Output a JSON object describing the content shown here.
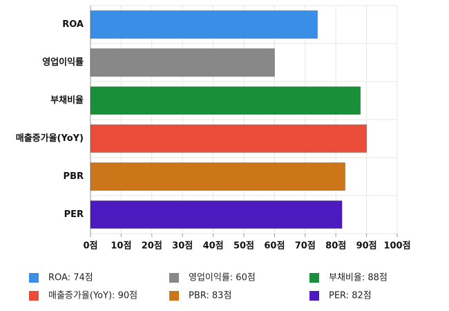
{
  "chart_data": {
    "type": "hbar",
    "categories": [
      "ROA",
      "영업이익률",
      "부채비율",
      "매출증가율(YoY)",
      "PBR",
      "PER"
    ],
    "values": [
      74,
      60,
      88,
      90,
      83,
      82
    ],
    "colors": [
      "#3a8ee6",
      "#888888",
      "#1a8f3a",
      "#ec4d3a",
      "#cc7519",
      "#4b1bbf"
    ],
    "xlim": [
      0,
      100
    ],
    "xticks": [
      {
        "value": 0,
        "label": "0점"
      },
      {
        "value": 10,
        "label": "10점"
      },
      {
        "value": 20,
        "label": "20점"
      },
      {
        "value": 30,
        "label": "30점"
      },
      {
        "value": 40,
        "label": "40점"
      },
      {
        "value": 50,
        "label": "50점"
      },
      {
        "value": 60,
        "label": "60점"
      },
      {
        "value": 70,
        "label": "70점"
      },
      {
        "value": 80,
        "label": "80점"
      },
      {
        "value": 90,
        "label": "90점"
      },
      {
        "value": 100,
        "label": "100점"
      }
    ],
    "grid": true,
    "legend": [
      "ROA: 74점",
      "영업이익률: 60점",
      "부채비율: 88점",
      "매출증가율(YoY): 90점",
      "PBR: 83점",
      "PER: 82점"
    ]
  }
}
